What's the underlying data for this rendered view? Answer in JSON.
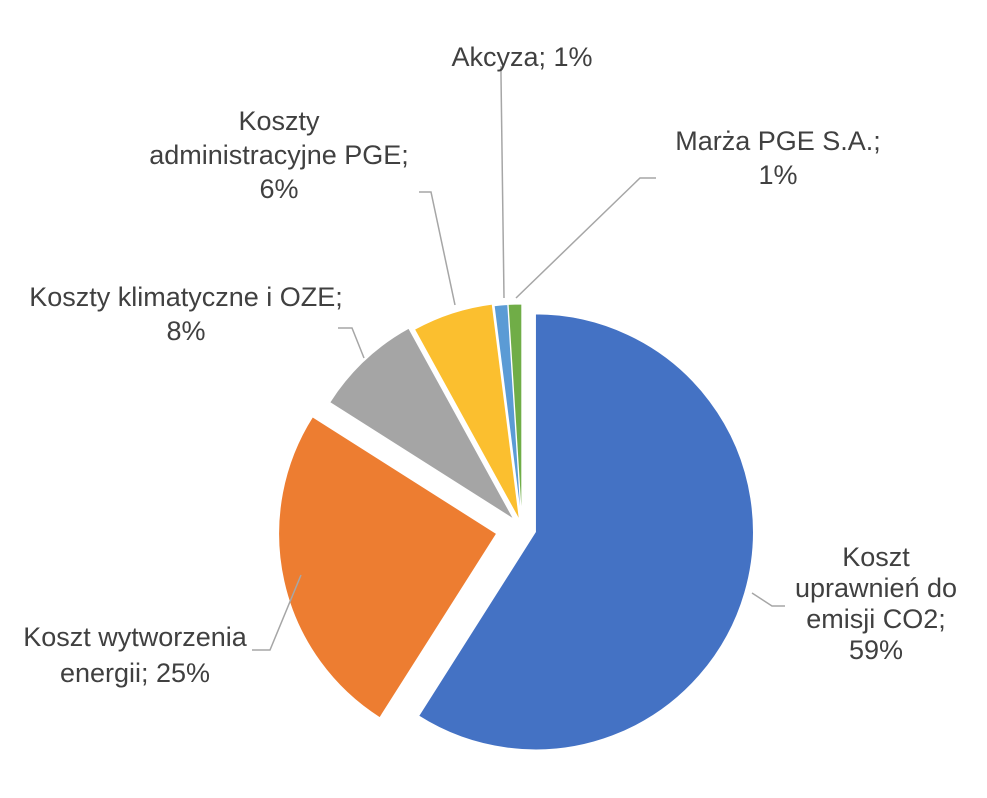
{
  "chart_data": {
    "type": "pie",
    "title": "",
    "slices": [
      {
        "name": "Koszt uprawnień do emisji CO2",
        "value": 59,
        "label_lines": [
          "Koszt",
          "uprawnień do",
          "emisji CO2;",
          "59%"
        ],
        "color": "#4472c4"
      },
      {
        "name": "Koszt wytworzenia energii",
        "value": 25,
        "label_lines": [
          "Koszt wytworzenia",
          "energii; 25%"
        ],
        "color": "#ed7d31"
      },
      {
        "name": "Koszty klimatyczne i OZE",
        "value": 8,
        "label_lines": [
          "Koszty klimatyczne i OZE;",
          "8%"
        ],
        "color": "#a5a5a5"
      },
      {
        "name": "Koszty administracyjne PGE",
        "value": 6,
        "label_lines": [
          "Koszty",
          "administracyjne PGE;",
          "6%"
        ],
        "color": "#fbbf2f"
      },
      {
        "name": "Akcyza",
        "value": 1,
        "label_lines": [
          "Akcyza; 1%"
        ],
        "color": "#5b9bd5"
      },
      {
        "name": "Marża PGE S.A.",
        "value": 1,
        "label_lines": [
          "Marża PGE S.A.;",
          "1%"
        ],
        "color": "#70ad47"
      }
    ],
    "legend": "none",
    "data_labels": "outside with leader lines"
  }
}
